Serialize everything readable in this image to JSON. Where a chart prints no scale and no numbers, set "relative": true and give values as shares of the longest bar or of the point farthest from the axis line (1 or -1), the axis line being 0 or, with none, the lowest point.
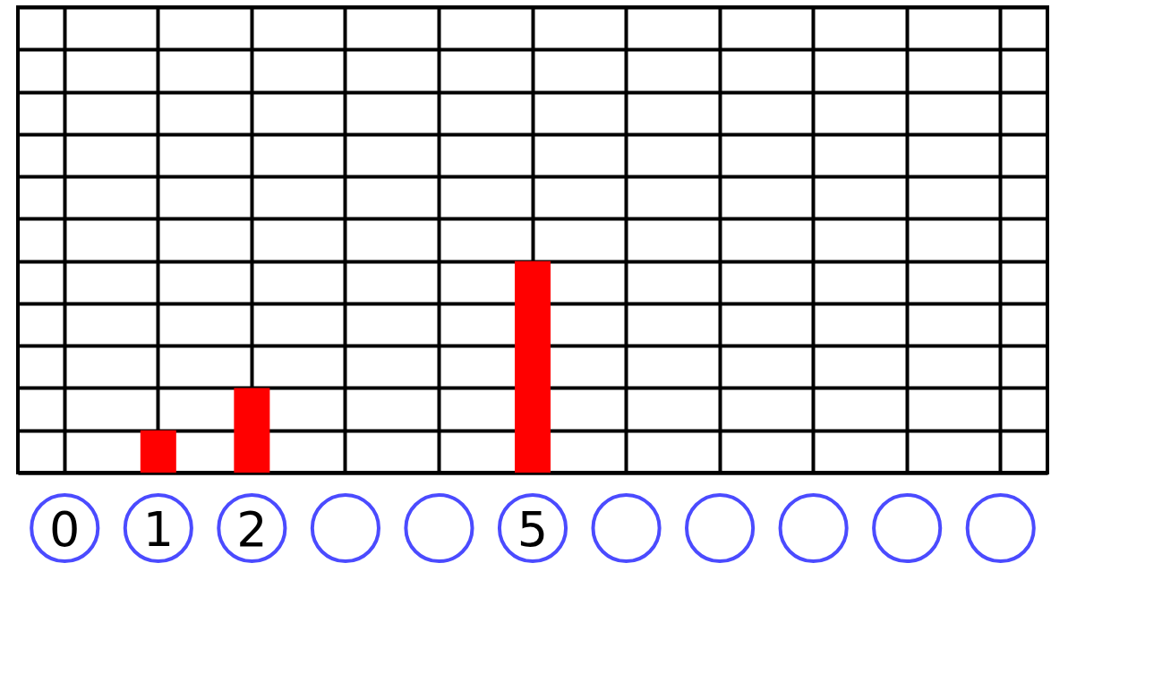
{
  "chart_data": {
    "type": "bar",
    "relative": true,
    "categories": [
      "0",
      "1",
      "2",
      null,
      null,
      "5",
      null,
      null,
      null,
      null,
      null
    ],
    "values": [
      0,
      0.2,
      0.4,
      0,
      0,
      1,
      0,
      0,
      0,
      0,
      0
    ],
    "color": "#ff0000",
    "grid": true
  }
}
